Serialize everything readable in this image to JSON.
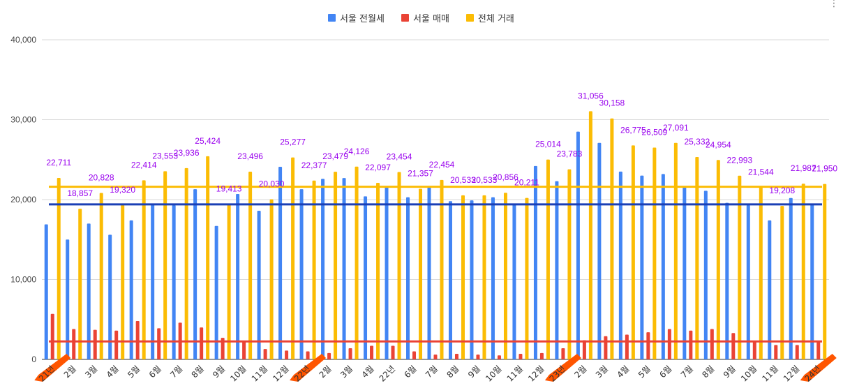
{
  "chart_data": {
    "type": "bar",
    "title": "",
    "xlabel": "",
    "ylabel": "",
    "ylim": [
      0,
      40000
    ],
    "yticks": [
      "0",
      "10,000",
      "20,000",
      "30,000",
      "40,000"
    ],
    "categories": [
      "21년",
      "2월",
      "3월",
      "4월",
      "5월",
      "6월",
      "7월",
      "8월",
      "9월",
      "10월",
      "11월",
      "12월",
      "22년",
      "2월",
      "3월",
      "4월",
      "22년",
      "6월",
      "7월",
      "8월",
      "9월",
      "10월",
      "11월",
      "12월",
      "23년",
      "2월",
      "3월",
      "4월",
      "5월",
      "6월",
      "7월",
      "8월",
      "9월",
      "10월",
      "11월",
      "12월",
      "24년"
    ],
    "series": [
      {
        "name": "서울 전월세",
        "color": "#4285f4",
        "values": [
          16900,
          15000,
          17000,
          15600,
          17400,
          19500,
          19300,
          21300,
          16700,
          20700,
          18600,
          24100,
          21300,
          22600,
          22700,
          20400,
          21700,
          20300,
          21700,
          19800,
          19900,
          20300,
          19500,
          24200,
          22300,
          28500,
          27100,
          23500,
          23000,
          23200,
          21700,
          21100,
          19600,
          19300,
          17400,
          20200,
          19500
        ]
      },
      {
        "name": "서울 매매",
        "color": "#ea4335",
        "values": [
          5700,
          3800,
          3700,
          3600,
          4800,
          3900,
          4600,
          4000,
          2700,
          2200,
          1300,
          1100,
          1000,
          800,
          1400,
          1700,
          1700,
          1000,
          600,
          700,
          600,
          500,
          700,
          800,
          1400,
          2400,
          2900,
          3100,
          3400,
          3800,
          3600,
          3800,
          3300,
          2300,
          1800,
          1800,
          2300
        ]
      },
      {
        "name": "전체 거래",
        "color": "#fbbc04",
        "values": [
          22711,
          18857,
          20828,
          19320,
          22414,
          23553,
          23936,
          25424,
          19413,
          23496,
          20030,
          25277,
          22377,
          23479,
          24126,
          22097,
          23454,
          21357,
          22454,
          20533,
          20533,
          20856,
          20211,
          25014,
          23783,
          31056,
          30158,
          26775,
          26509,
          27091,
          25332,
          24954,
          22993,
          21544,
          19208,
          21987,
          21950
        ]
      }
    ],
    "data_labels": [
      "22,711",
      "18,857",
      "20,828",
      "19,320",
      "22,414",
      "23,553",
      "23,936",
      "25,424",
      "19,413",
      "23,496",
      "20,030",
      "25,277",
      "22,377",
      "23,479",
      "24,126",
      "22,097",
      "23,454",
      "21,357",
      "22,454",
      "20,533",
      "20,533",
      "20,856",
      "20,211",
      "25,014",
      "23,783",
      "31,056",
      "30,158",
      "26,775",
      "26,509",
      "27,091",
      "25,332",
      "24,954",
      "22,993",
      "21,544",
      "19,208",
      "21,987",
      "21,950"
    ],
    "reference_lines": [
      {
        "series": "서울 전월세 평균",
        "value": 19400,
        "color": "#1a3fb5"
      },
      {
        "series": "전체 거래 평균",
        "value": 21600,
        "color": "#fbbc04"
      },
      {
        "series": "서울 매매 평균",
        "value": 2250,
        "color": "#ea4335"
      }
    ],
    "legend_position": "top-center",
    "grid": true
  },
  "colors": {
    "label_purple": "#9900ee",
    "marker_orange": "#ff5500"
  },
  "highlighted_categories": [
    0,
    12,
    24,
    36
  ]
}
